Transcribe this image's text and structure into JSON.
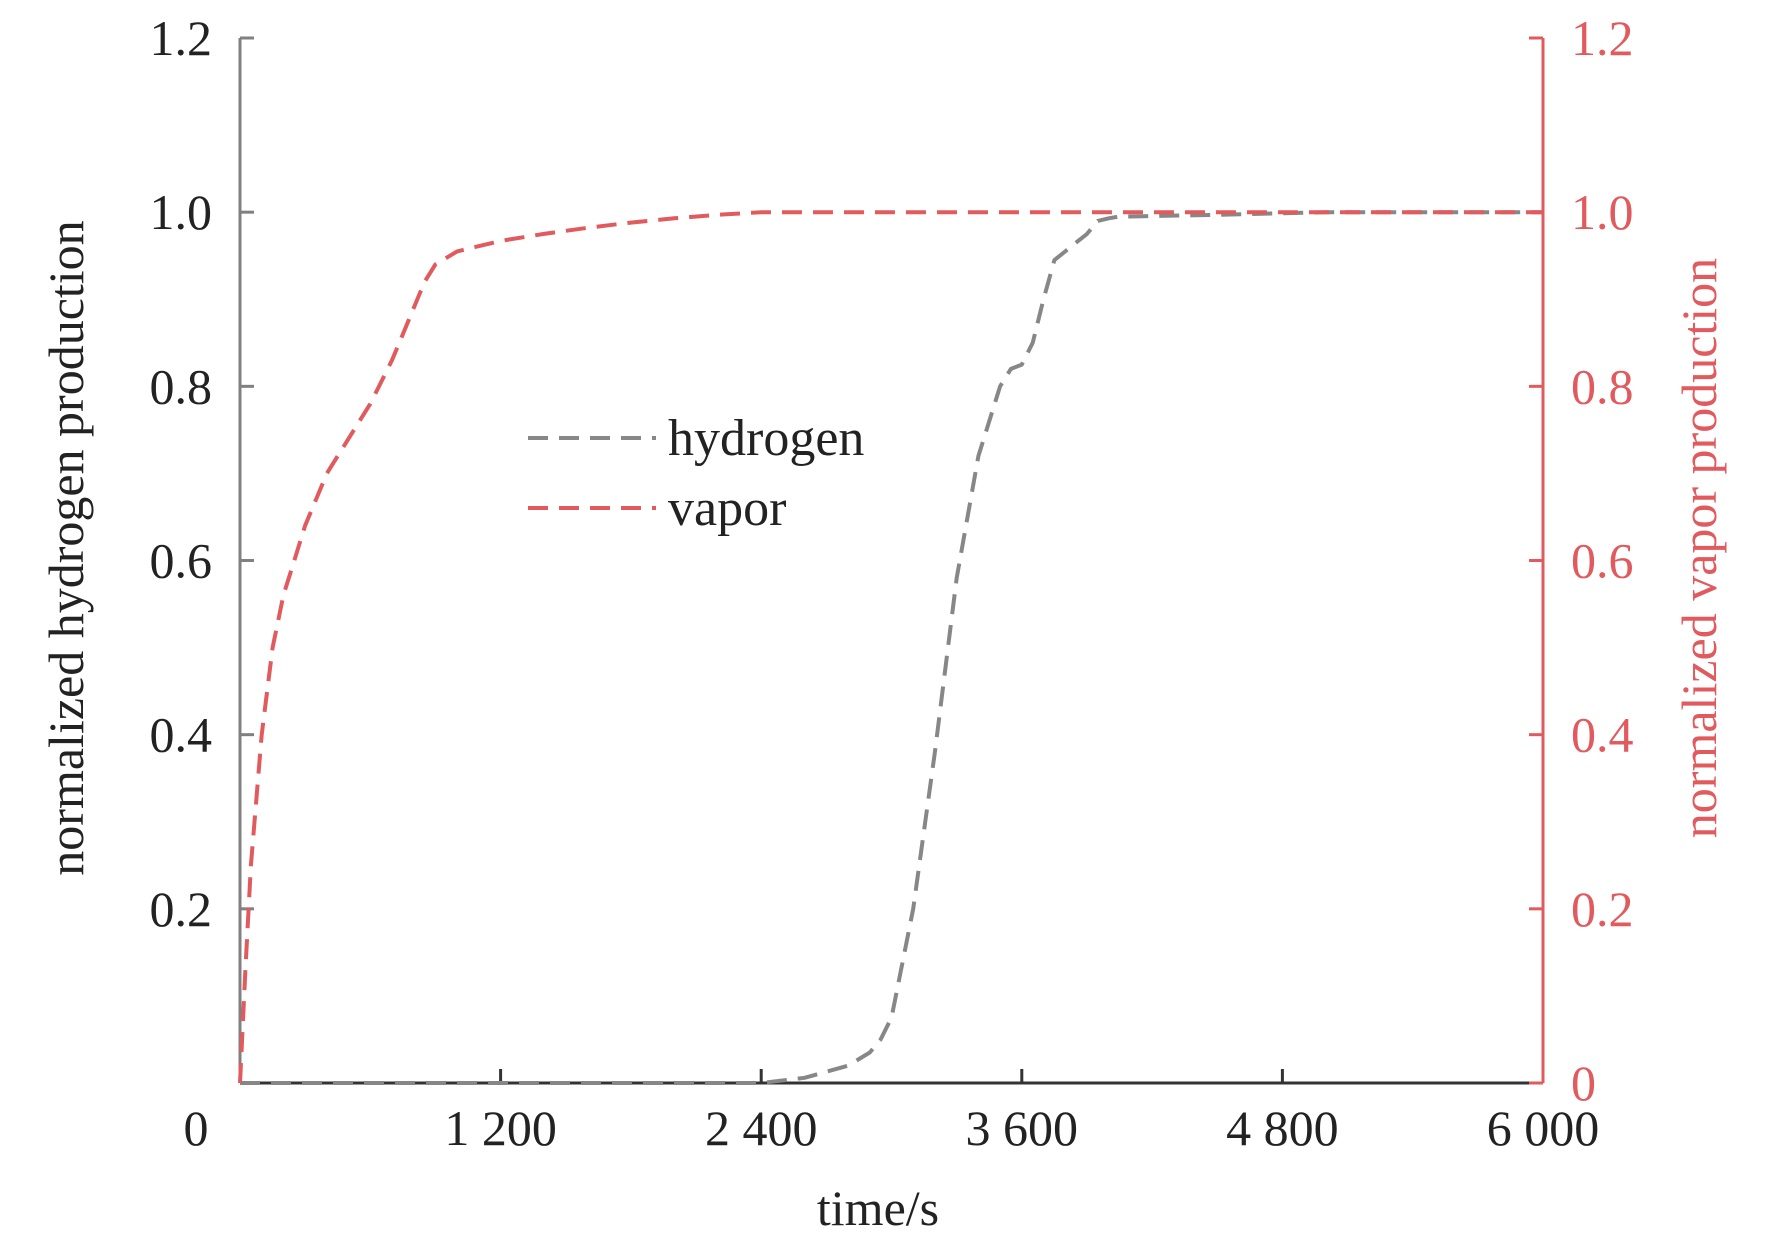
{
  "chart_data": {
    "type": "line",
    "xlabel": "time/s",
    "ylabel_left": "normalized hydrogen production",
    "ylabel_right": "normalized vapor production",
    "xlim": [
      0,
      6000
    ],
    "ylim_left": [
      0,
      1.2
    ],
    "ylim_right": [
      0,
      1.2
    ],
    "x_ticks": [
      0,
      1200,
      2400,
      3600,
      4800,
      6000
    ],
    "x_tick_labels": [
      "0",
      "1 200",
      "2 400",
      "3 600",
      "4 800",
      "6 000"
    ],
    "y_left_ticks": [
      0.2,
      0.4,
      0.6,
      0.8,
      1.0,
      1.2
    ],
    "y_left_tick_labels": [
      "0.2",
      "0.4",
      "0.6",
      "0.8",
      "1.0",
      "1.2"
    ],
    "y_right_ticks": [
      0,
      0.2,
      0.4,
      0.6,
      0.8,
      1.0,
      1.2
    ],
    "y_right_tick_labels": [
      "0",
      "0.2",
      "0.4",
      "0.6",
      "0.8",
      "1.0",
      "1.2"
    ],
    "grid": false,
    "legend_position": "upper-center",
    "series": [
      {
        "name": "hydrogen",
        "axis": "left",
        "style": "dashed",
        "color": "#878787",
        "x": [
          0,
          600,
          1200,
          1800,
          2400,
          2600,
          2800,
          2900,
          2950,
          3000,
          3100,
          3200,
          3300,
          3400,
          3500,
          3550,
          3600,
          3650,
          3700,
          3750,
          3800,
          3850,
          3900,
          3950,
          4000,
          4050,
          4100,
          4500,
          5000,
          6000
        ],
        "y": [
          0,
          0,
          0,
          0,
          0,
          0.006,
          0.02,
          0.035,
          0.05,
          0.075,
          0.2,
          0.38,
          0.58,
          0.72,
          0.8,
          0.82,
          0.825,
          0.85,
          0.9,
          0.945,
          0.955,
          0.965,
          0.975,
          0.99,
          0.993,
          0.995,
          0.995,
          0.997,
          1.0,
          1.0
        ]
      },
      {
        "name": "vapor",
        "axis": "right",
        "style": "dashed",
        "color": "#e05a5e",
        "x": [
          0,
          25,
          50,
          100,
          150,
          200,
          250,
          300,
          350,
          400,
          450,
          500,
          550,
          600,
          700,
          750,
          800,
          850,
          900,
          1000,
          1200,
          1400,
          1600,
          1800,
          2000,
          2200,
          2400,
          3000,
          4000,
          5000,
          6000
        ],
        "y": [
          0,
          0.13,
          0.25,
          0.4,
          0.5,
          0.56,
          0.6,
          0.64,
          0.67,
          0.7,
          0.72,
          0.74,
          0.76,
          0.78,
          0.83,
          0.86,
          0.89,
          0.92,
          0.94,
          0.955,
          0.967,
          0.975,
          0.982,
          0.988,
          0.993,
          0.997,
          1.0,
          1.0,
          1.0,
          1.0,
          1.0
        ]
      }
    ]
  },
  "colors": {
    "left_axis": "#808080",
    "right_axis": "#e05a5e",
    "text": "#222222"
  }
}
